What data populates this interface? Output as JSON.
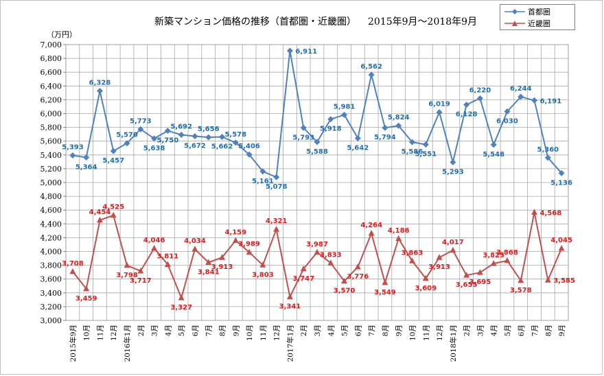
{
  "title": "新築マンション価格の推移（首都圏・近畿圏）",
  "period": "2015年9月～2018年9月",
  "chart_data": {
    "type": "line",
    "unit_label": "（万円）",
    "ylim": [
      3000,
      7000
    ],
    "y_step": 200,
    "y_ticks": [
      "3,000",
      "3,200",
      "3,400",
      "3,600",
      "3,800",
      "4,000",
      "4,200",
      "4,400",
      "4,600",
      "4,800",
      "5,000",
      "5,200",
      "5,400",
      "5,600",
      "5,800",
      "6,000",
      "6,200",
      "6,400",
      "6,600",
      "6,800",
      "7,000"
    ],
    "categories": [
      "2015年9月",
      "10月",
      "11月",
      "12月",
      "2016年1月",
      "2月",
      "3月",
      "4月",
      "5月",
      "6月",
      "7月",
      "8月",
      "9月",
      "10月",
      "11月",
      "12月",
      "2017年1月",
      "2月",
      "3月",
      "4月",
      "5月",
      "6月",
      "7月",
      "8月",
      "9月",
      "10月",
      "11月",
      "12月",
      "2018年1月",
      "2月",
      "3月",
      "4月",
      "5月",
      "6月",
      "7月",
      "8月",
      "9月"
    ],
    "legend_position": "top-right",
    "series": [
      {
        "name": "首都圏",
        "color": "#4f81bd",
        "label_color": "#1f6fad",
        "marker": "diamond",
        "values": [
          5393,
          5364,
          6328,
          5457,
          5570,
          5773,
          5638,
          5750,
          5692,
          5672,
          5656,
          5662,
          5578,
          5406,
          5161,
          5078,
          6911,
          5793,
          5588,
          5918,
          5981,
          5642,
          6562,
          5794,
          5824,
          5586,
          5551,
          6019,
          5293,
          6128,
          6220,
          5548,
          6030,
          6244,
          6191,
          5360,
          5136
        ],
        "labels": [
          "5,393",
          "5,364",
          "6,328",
          "5,457",
          "5,570",
          "5,773",
          "5,638",
          "5,750",
          "5,692",
          "5,672",
          "5,656",
          "5,662",
          "5,578",
          "5,406",
          "5,161",
          "5,078",
          "6,911",
          "5,793",
          "5,588",
          "5,918",
          "5,981",
          "5,642",
          "6,562",
          "5,794",
          "5,824",
          "5,586",
          "5,551",
          "6,019",
          "5,293",
          "6,128",
          "6,220",
          "5,548",
          "6,030",
          "6,244",
          "6,191",
          "5,360",
          "5,136"
        ],
        "label_pos": [
          "a",
          "b",
          "a",
          "b",
          "a",
          "a",
          "b",
          "b",
          "a",
          "b",
          "a",
          "b",
          "a",
          "a",
          "b",
          "b",
          "r",
          "b",
          "b",
          "b",
          "a",
          "b",
          "a",
          "b",
          "a",
          "b",
          "b",
          "a",
          "b",
          "b",
          "a",
          "b",
          "b",
          "a",
          "r",
          "a",
          "b"
        ]
      },
      {
        "name": "近畿圏",
        "color": "#c0504d",
        "label_color": "#e01b1b",
        "marker": "triangle",
        "values": [
          3708,
          3459,
          4454,
          4525,
          3798,
          3717,
          4046,
          3811,
          3327,
          4034,
          3841,
          3913,
          4159,
          3989,
          3803,
          4321,
          3341,
          3747,
          3987,
          3833,
          3570,
          3776,
          4264,
          3549,
          4186,
          3863,
          3609,
          3913,
          4017,
          3655,
          3695,
          3825,
          3868,
          3578,
          4568,
          3585,
          4045
        ],
        "labels": [
          "3,708",
          "3,459",
          "4,454",
          "4,525",
          "3,798",
          "3,717",
          "4,046",
          "3,811",
          "3,327",
          "4,034",
          "3,841",
          "3,913",
          "4,159",
          "3,989",
          "3,803",
          "4,321",
          "3,341",
          "3,747",
          "3,987",
          "3,833",
          "3,570",
          "3,776",
          "4,264",
          "3,549",
          "4,186",
          "3,863",
          "3,609",
          "3,913",
          "4,017",
          "3,655",
          "3,695",
          "3,825",
          "3,868",
          "3,578",
          "4,568",
          "3,585",
          "4,045"
        ],
        "label_pos": [
          "a",
          "b",
          "a",
          "a",
          "b",
          "b",
          "a",
          "a",
          "b",
          "a",
          "b",
          "b",
          "a",
          "a",
          "b",
          "a",
          "b",
          "b",
          "a",
          "a",
          "b",
          "b",
          "a",
          "b",
          "a",
          "a",
          "b",
          "b",
          "a",
          "b",
          "b",
          "a",
          "a",
          "b",
          "r",
          "r",
          "a"
        ]
      }
    ]
  }
}
